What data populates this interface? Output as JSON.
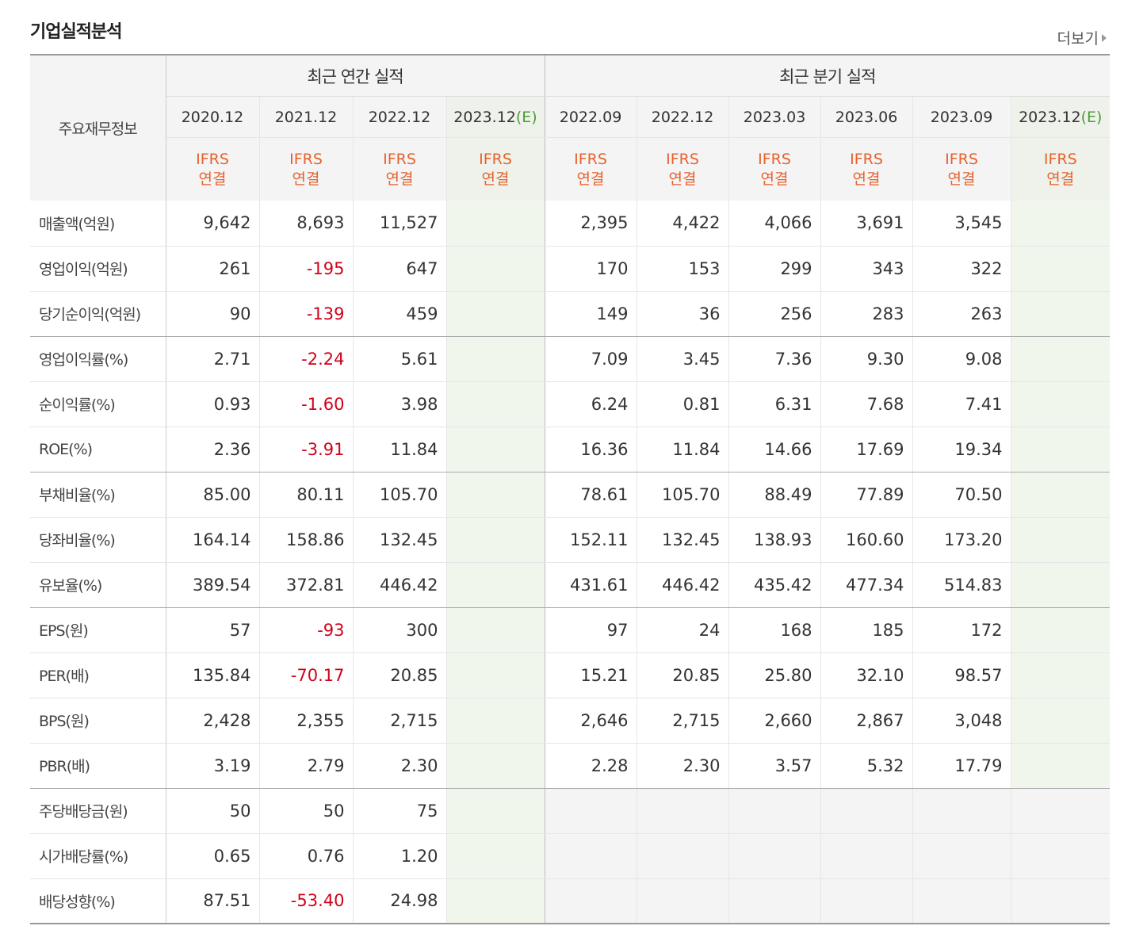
{
  "header": {
    "title": "기업실적분석",
    "more_label": "더보기"
  },
  "table": {
    "row_header": "주요재무정보",
    "annual_title": "최근 연간 실적",
    "quarter_title": "최근 분기 실적",
    "annual_periods": [
      "2020.12",
      "2021.12",
      "2022.12",
      "2023.12"
    ],
    "quarter_periods": [
      "2022.09",
      "2022.12",
      "2023.03",
      "2023.06",
      "2023.09",
      "2023.12"
    ],
    "est_mark": "(E)",
    "ifrs_top": "IFRS",
    "ifrs_bottom": "연결",
    "rows": [
      {
        "label": "매출액(억원)",
        "annual": [
          "9,642",
          "8,693",
          "11,527",
          ""
        ],
        "quarter": [
          "2,395",
          "4,422",
          "4,066",
          "3,691",
          "3,545",
          ""
        ]
      },
      {
        "label": "영업이익(억원)",
        "annual": [
          "261",
          "-195",
          "647",
          ""
        ],
        "quarter": [
          "170",
          "153",
          "299",
          "343",
          "322",
          ""
        ]
      },
      {
        "label": "당기순이익(억원)",
        "annual": [
          "90",
          "-139",
          "459",
          ""
        ],
        "quarter": [
          "149",
          "36",
          "256",
          "283",
          "263",
          ""
        ]
      },
      {
        "label": "영업이익률(%)",
        "annual": [
          "2.71",
          "-2.24",
          "5.61",
          ""
        ],
        "quarter": [
          "7.09",
          "3.45",
          "7.36",
          "9.30",
          "9.08",
          ""
        ]
      },
      {
        "label": "순이익률(%)",
        "annual": [
          "0.93",
          "-1.60",
          "3.98",
          ""
        ],
        "quarter": [
          "6.24",
          "0.81",
          "6.31",
          "7.68",
          "7.41",
          ""
        ]
      },
      {
        "label": "ROE(%)",
        "annual": [
          "2.36",
          "-3.91",
          "11.84",
          ""
        ],
        "quarter": [
          "16.36",
          "11.84",
          "14.66",
          "17.69",
          "19.34",
          ""
        ]
      },
      {
        "label": "부채비율(%)",
        "annual": [
          "85.00",
          "80.11",
          "105.70",
          ""
        ],
        "quarter": [
          "78.61",
          "105.70",
          "88.49",
          "77.89",
          "70.50",
          ""
        ]
      },
      {
        "label": "당좌비율(%)",
        "annual": [
          "164.14",
          "158.86",
          "132.45",
          ""
        ],
        "quarter": [
          "152.11",
          "132.45",
          "138.93",
          "160.60",
          "173.20",
          ""
        ]
      },
      {
        "label": "유보율(%)",
        "annual": [
          "389.54",
          "372.81",
          "446.42",
          ""
        ],
        "quarter": [
          "431.61",
          "446.42",
          "435.42",
          "477.34",
          "514.83",
          ""
        ]
      },
      {
        "label": "EPS(원)",
        "annual": [
          "57",
          "-93",
          "300",
          ""
        ],
        "quarter": [
          "97",
          "24",
          "168",
          "185",
          "172",
          ""
        ]
      },
      {
        "label": "PER(배)",
        "annual": [
          "135.84",
          "-70.17",
          "20.85",
          ""
        ],
        "quarter": [
          "15.21",
          "20.85",
          "25.80",
          "32.10",
          "98.57",
          ""
        ]
      },
      {
        "label": "BPS(원)",
        "annual": [
          "2,428",
          "2,355",
          "2,715",
          ""
        ],
        "quarter": [
          "2,646",
          "2,715",
          "2,660",
          "2,867",
          "3,048",
          ""
        ]
      },
      {
        "label": "PBR(배)",
        "annual": [
          "3.19",
          "2.79",
          "2.30",
          ""
        ],
        "quarter": [
          "2.28",
          "2.30",
          "3.57",
          "5.32",
          "17.79",
          ""
        ]
      },
      {
        "label": "주당배당금(원)",
        "annual": [
          "50",
          "50",
          "75",
          ""
        ],
        "quarter": null
      },
      {
        "label": "시가배당률(%)",
        "annual": [
          "0.65",
          "0.76",
          "1.20",
          ""
        ],
        "quarter": null
      },
      {
        "label": "배당성향(%)",
        "annual": [
          "87.51",
          "-53.40",
          "24.98",
          ""
        ],
        "quarter": null
      }
    ]
  },
  "colors": {
    "negative": "#d0021b",
    "ifrs": "#e6622e",
    "estimate": "#4f9a3a"
  }
}
